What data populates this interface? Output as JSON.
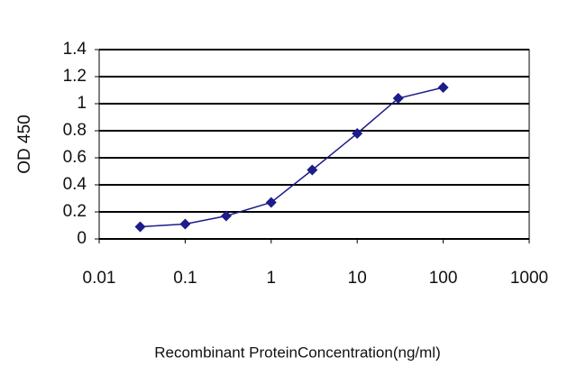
{
  "chart_data": {
    "type": "line",
    "xlabel": "Recombinant ProteinConcentration(ng/ml)",
    "ylabel": "OD 450",
    "x": [
      0.03,
      0.1,
      0.3,
      1,
      3,
      10,
      30,
      100
    ],
    "series": [
      {
        "color": "#1c1c8a",
        "values": [
          0.09,
          0.11,
          0.17,
          0.27,
          0.51,
          0.78,
          1.04,
          1.12
        ]
      }
    ],
    "xscale": "log",
    "xlim": [
      0.01,
      1000
    ],
    "xticks": [
      0.01,
      0.1,
      1,
      10,
      100,
      1000
    ],
    "ylim": [
      0,
      1.4
    ],
    "yticks": [
      0,
      0.2,
      0.4,
      0.6,
      0.8,
      1,
      1.2,
      1.4
    ],
    "grid": true
  }
}
